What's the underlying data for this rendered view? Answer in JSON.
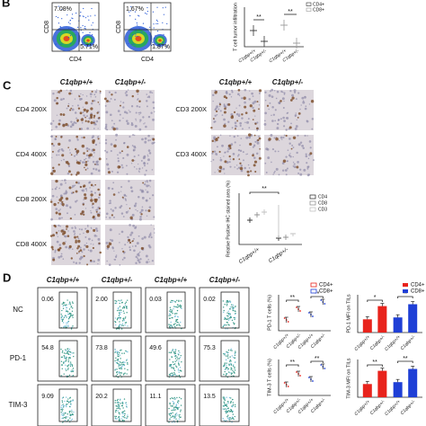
{
  "panels": {
    "B": {
      "label": "B",
      "flow": [
        {
          "y_axis": "CD8",
          "x_axis": "CD4",
          "q_top_left": "7.08%",
          "q_bottom_right": "5.71%"
        },
        {
          "y_axis": "CD8",
          "x_axis": "CD4",
          "q_top_left": "1.67%",
          "q_bottom_right": "1.87%"
        }
      ],
      "chart": {
        "y_label": "T cell tumor infiltration",
        "legend": [
          "CD4+",
          "CD8+"
        ],
        "categories": [
          "C1qbp+/+",
          "C1qbp+/-",
          "C1qbp+/+",
          "C1qbp+/-"
        ],
        "annotations": [
          "**",
          "**"
        ]
      }
    },
    "C": {
      "label": "C",
      "headers": [
        "C1qbp+/+",
        "C1qbp+/-"
      ],
      "rows_left": [
        "CD4 200X",
        "CD4 400X",
        "CD8 200X",
        "CD8 400X"
      ],
      "rows_right": [
        "CD3 200X",
        "CD3 400X"
      ],
      "chart": {
        "y_label": "Relative Positive IHC stained area (%)",
        "legend": [
          "CD4",
          "CD8",
          "CD3"
        ],
        "categories": [
          "C1qbp+/+",
          "C1qbp+/-"
        ],
        "annotation": "**"
      }
    },
    "D": {
      "label": "D",
      "headers": [
        "C1qbp+/+",
        "C1qbp+/-",
        "C1qbp+/+",
        "C1qbp+/-"
      ],
      "rows": [
        "NC",
        "PD-1",
        "TIM-3"
      ],
      "gates": [
        [
          "0.06",
          "2.00",
          "0.03",
          "0.02"
        ],
        [
          "54.8",
          "73.8",
          "49.6",
          "75.3"
        ],
        [
          "9.09",
          "20.2",
          "11.1",
          "13.5"
        ]
      ],
      "categories": [
        "C1qbp+/+",
        "C1qbp+/-",
        "C1qbp+/+",
        "C1qbp+/-"
      ],
      "charts": [
        {
          "y_label": "PD-1 T cells (%)",
          "legend": [
            "CD4+",
            "CD8+"
          ],
          "annotations": [
            "**",
            "**"
          ]
        },
        {
          "y_label": "TIM-3 T cells (%)",
          "annotations": [
            "**",
            "**"
          ]
        },
        {
          "y_label": "PD-1 MFI on TILs",
          "legend": [
            "CD4+",
            "CD8+"
          ],
          "annotations": [
            "*",
            "**"
          ]
        },
        {
          "y_label": "TIM-3 MFI on TILs",
          "annotations": [
            "**",
            "**"
          ]
        }
      ]
    }
  }
}
